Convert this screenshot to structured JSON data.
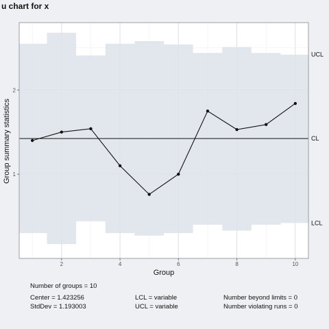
{
  "chart_data": {
    "type": "line",
    "title": "u chart for x",
    "xlabel": "Group",
    "ylabel": "Group summary statistics",
    "x": [
      1,
      2,
      3,
      4,
      5,
      6,
      7,
      8,
      9,
      10
    ],
    "series": [
      {
        "values": [
          1.4,
          1.5,
          1.54,
          1.1,
          0.76,
          1.0,
          1.75,
          1.53,
          1.59,
          1.84
        ]
      }
    ],
    "center": 1.423256,
    "ucl": [
      2.55,
      2.68,
      2.41,
      2.55,
      2.58,
      2.54,
      2.44,
      2.51,
      2.44,
      2.42
    ],
    "lcl": [
      0.3,
      0.17,
      0.44,
      0.3,
      0.27,
      0.3,
      0.4,
      0.33,
      0.4,
      0.42
    ],
    "xlim": [
      0.55,
      10.45
    ],
    "ylim": [
      0.0,
      2.8
    ],
    "xticks": [
      2,
      4,
      6,
      8,
      10
    ],
    "yticks": [
      1,
      2
    ],
    "limit_labels": {
      "ucl": "UCL",
      "cl": "CL",
      "lcl": "LCL"
    },
    "grid": true,
    "colors": {
      "band": "#dde3ea",
      "line": "#111111",
      "panel": "#ffffff"
    }
  },
  "stats": {
    "groups": "Number of groups = 10",
    "center": "Center = 1.423256",
    "stddev": "StdDev = 1.193003",
    "lcl": "LCL = variable",
    "ucl": "UCL = variable",
    "beyond": "Number beyond limits = 0",
    "runs": "Number violating runs = 0"
  }
}
